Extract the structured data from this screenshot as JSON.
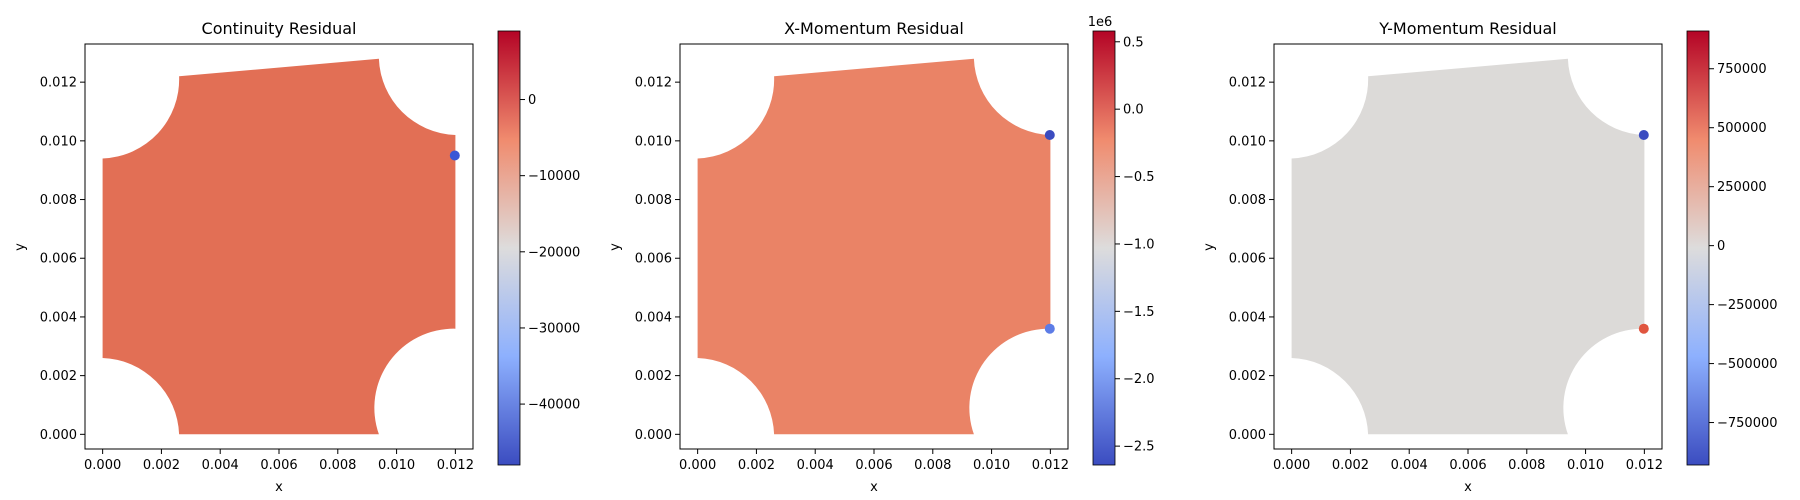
{
  "chart_data": [
    {
      "type": "scatter",
      "title": "Continuity Residual",
      "xlabel": "x",
      "ylabel": "y",
      "xlim": [
        -0.0006,
        0.0126
      ],
      "ylim": [
        -0.0005,
        0.0133
      ],
      "x_ticks": [
        "0.000",
        "0.002",
        "0.004",
        "0.006",
        "0.008",
        "0.010",
        "0.012"
      ],
      "y_ticks": [
        "0.000",
        "0.002",
        "0.004",
        "0.006",
        "0.008",
        "0.010",
        "0.012"
      ],
      "field_fill": "#e26f55",
      "highlights": [
        {
          "x": 0.01198,
          "y": 0.0095,
          "color": "#3b57d6"
        }
      ],
      "colorbar": {
        "range": [
          -48000,
          9000
        ],
        "ticks": [
          {
            "value": 0,
            "label": "0"
          },
          {
            "value": -10000,
            "label": "−10000"
          },
          {
            "value": -20000,
            "label": "−20000"
          },
          {
            "value": -30000,
            "label": "−30000"
          },
          {
            "value": -40000,
            "label": "−40000"
          }
        ],
        "offset": ""
      }
    },
    {
      "type": "scatter",
      "title": "X-Momentum Residual",
      "xlabel": "x",
      "ylabel": "y",
      "xlim": [
        -0.0006,
        0.0126
      ],
      "ylim": [
        -0.0005,
        0.0133
      ],
      "x_ticks": [
        "0.000",
        "0.002",
        "0.004",
        "0.006",
        "0.008",
        "0.010",
        "0.012"
      ],
      "y_ticks": [
        "0.000",
        "0.002",
        "0.004",
        "0.006",
        "0.008",
        "0.010",
        "0.012"
      ],
      "field_fill": "#ea8366",
      "highlights": [
        {
          "x": 0.01198,
          "y": 0.0102,
          "color": "#3b4cc0"
        },
        {
          "x": 0.01198,
          "y": 0.0036,
          "color": "#5d7ce6"
        }
      ],
      "colorbar": {
        "range": [
          -2.64,
          0.58
        ],
        "ticks": [
          {
            "value": 0.5,
            "label": "0.5"
          },
          {
            "value": 0.0,
            "label": "0.0"
          },
          {
            "value": -0.5,
            "label": "−0.5"
          },
          {
            "value": -1.0,
            "label": "−1.0"
          },
          {
            "value": -1.5,
            "label": "−1.5"
          },
          {
            "value": -2.0,
            "label": "−2.0"
          },
          {
            "value": -2.5,
            "label": "−2.5"
          }
        ],
        "offset": "1e6"
      }
    },
    {
      "type": "scatter",
      "title": "Y-Momentum Residual",
      "xlabel": "x",
      "ylabel": "y",
      "xlim": [
        -0.0006,
        0.0126
      ],
      "ylim": [
        -0.0005,
        0.0133
      ],
      "x_ticks": [
        "0.000",
        "0.002",
        "0.004",
        "0.006",
        "0.008",
        "0.010",
        "0.012"
      ],
      "y_ticks": [
        "0.000",
        "0.002",
        "0.004",
        "0.006",
        "0.008",
        "0.010",
        "0.012"
      ],
      "field_fill": "#dcdad8",
      "highlights": [
        {
          "x": 0.01198,
          "y": 0.0102,
          "color": "#3b4cc0"
        },
        {
          "x": 0.01198,
          "y": 0.0036,
          "color": "#e0553f"
        }
      ],
      "colorbar": {
        "range": [
          -930000,
          910000
        ],
        "ticks": [
          {
            "value": 750000,
            "label": "750000"
          },
          {
            "value": 500000,
            "label": "500000"
          },
          {
            "value": 250000,
            "label": "250000"
          },
          {
            "value": 0,
            "label": "0"
          },
          {
            "value": -250000,
            "label": "−250000"
          },
          {
            "value": -500000,
            "label": "−500000"
          },
          {
            "value": -750000,
            "label": "−750000"
          }
        ],
        "offset": ""
      }
    }
  ],
  "domain_shape": {
    "corners": [
      [
        0.0,
        0.0026
      ],
      [
        0.0,
        0.0094
      ],
      [
        0.0026,
        0.0122
      ],
      [
        0.0094,
        0.0128
      ],
      [
        0.012,
        0.0102
      ],
      [
        0.012,
        0.0036
      ],
      [
        0.0094,
        0.0
      ],
      [
        0.0026,
        0.0
      ]
    ],
    "cutout_radius": 0.0027
  },
  "colorbar_colors": [
    "#b40426",
    "#f08b6e",
    "#dddcdc",
    "#8db0fe",
    "#3b4cc0"
  ]
}
